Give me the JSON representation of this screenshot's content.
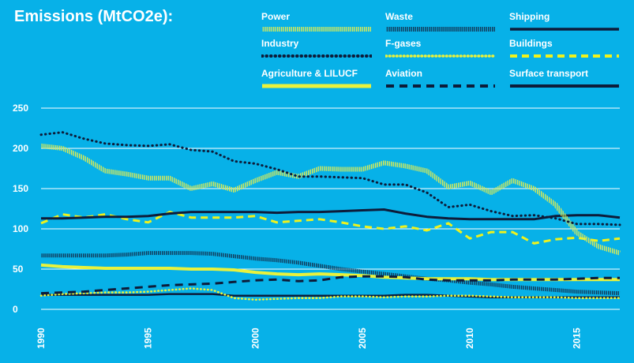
{
  "chart_data": {
    "type": "line",
    "title": "Emissions (MtCO2e):",
    "xlabel": "",
    "ylabel": "",
    "xlim": [
      1990,
      2017
    ],
    "ylim": [
      0,
      250
    ],
    "y_ticks": [
      250,
      200,
      150,
      100,
      50,
      0
    ],
    "x_ticks": [
      1990,
      1995,
      2000,
      2005,
      2010,
      2015
    ],
    "grid": "horizontal",
    "legend_position": "top",
    "x": [
      1990,
      1991,
      1992,
      1993,
      1994,
      1995,
      1996,
      1997,
      1998,
      1999,
      2000,
      2001,
      2002,
      2003,
      2004,
      2005,
      2006,
      2007,
      2008,
      2009,
      2010,
      2011,
      2012,
      2013,
      2014,
      2015,
      2016,
      2017
    ],
    "series": [
      {
        "key": "power",
        "name": "Power",
        "color": "#d7ea5a",
        "style": "hatch",
        "values": [
          203,
          200,
          188,
          172,
          168,
          163,
          163,
          150,
          156,
          148,
          160,
          170,
          165,
          175,
          174,
          174,
          182,
          178,
          172,
          152,
          157,
          145,
          160,
          150,
          130,
          95,
          78,
          70
        ]
      },
      {
        "key": "waste",
        "name": "Waste",
        "color": "#123a5a",
        "style": "hatch",
        "values": [
          67,
          67,
          67,
          67,
          68,
          70,
          70,
          70,
          69,
          66,
          63,
          61,
          58,
          54,
          50,
          47,
          44,
          41,
          38,
          36,
          33,
          31,
          28,
          26,
          24,
          22,
          21,
          20
        ]
      },
      {
        "key": "shipping",
        "name": "Shipping",
        "color": "#0d1c3a",
        "style": "solid",
        "values": [
          18,
          18,
          18,
          18,
          18,
          18,
          19,
          19,
          19,
          17,
          17,
          17,
          17,
          17,
          17,
          17,
          17,
          18,
          18,
          17,
          16,
          15,
          15,
          15,
          15,
          15,
          15,
          15
        ]
      },
      {
        "key": "industry",
        "name": "Industry",
        "color": "#0d1c3a",
        "style": "dotted",
        "values": [
          217,
          220,
          212,
          206,
          204,
          203,
          205,
          198,
          196,
          184,
          181,
          174,
          165,
          165,
          164,
          163,
          155,
          155,
          145,
          127,
          130,
          122,
          116,
          117,
          113,
          106,
          106,
          105
        ]
      },
      {
        "key": "fgases",
        "name": "F-gases",
        "color": "#e9f23c",
        "style": "dotted-yellow",
        "values": [
          17,
          19,
          20,
          21,
          21,
          22,
          24,
          26,
          24,
          14,
          12,
          13,
          14,
          14,
          16,
          16,
          15,
          16,
          16,
          17,
          17,
          16,
          15,
          15,
          15,
          14,
          14,
          14
        ]
      },
      {
        "key": "buildings",
        "name": "Buildings",
        "color": "#eff21c",
        "style": "dashed-yellow",
        "values": [
          107,
          118,
          114,
          118,
          112,
          108,
          121,
          114,
          114,
          114,
          116,
          108,
          110,
          112,
          108,
          103,
          100,
          103,
          98,
          107,
          88,
          96,
          96,
          82,
          87,
          89,
          85,
          88
        ]
      },
      {
        "key": "agriculture",
        "name": "Agriculture & LILUCF",
        "color": "#e9f23c",
        "style": "solid-yellow",
        "values": [
          55,
          53,
          52,
          51,
          51,
          51,
          51,
          50,
          50,
          49,
          46,
          44,
          43,
          44,
          43,
          42,
          40,
          39,
          38,
          38,
          38,
          37,
          37,
          37,
          37,
          37,
          37,
          37
        ]
      },
      {
        "key": "aviation",
        "name": "Aviation",
        "color": "#0d1c3a",
        "style": "dashed",
        "values": [
          20,
          21,
          22,
          24,
          26,
          28,
          30,
          31,
          32,
          34,
          36,
          37,
          35,
          36,
          40,
          41,
          41,
          40,
          37,
          36,
          36,
          36,
          37,
          37,
          37,
          38,
          39,
          39
        ]
      },
      {
        "key": "surface",
        "name": "Surface transport",
        "color": "#0d1c3a",
        "style": "solid-thick",
        "values": [
          113,
          113,
          114,
          115,
          115,
          116,
          119,
          121,
          121,
          121,
          121,
          120,
          121,
          121,
          122,
          123,
          124,
          119,
          115,
          113,
          112,
          112,
          112,
          112,
          116,
          117,
          117,
          114
        ]
      }
    ]
  }
}
